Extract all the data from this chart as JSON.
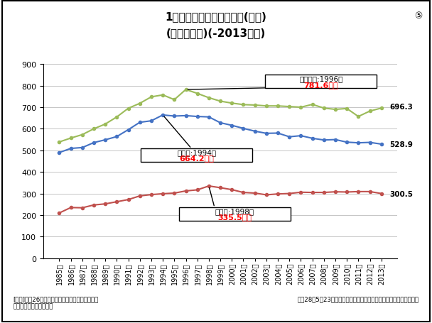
{
  "title_line1": "1世帯あたり平均所得金額(万円)",
  "title_line2": "(世帯構造別)(-2013年分)",
  "circle_num": "⑤",
  "years": [
    "1985年",
    "1986年",
    "1987年",
    "1988年",
    "1989年",
    "1990年",
    "1991年",
    "1992年",
    "1993年",
    "1994年",
    "1995年",
    "1996年",
    "1997年",
    "1998年",
    "1999年",
    "2000年",
    "2001年",
    "2002年",
    "2003年",
    "2004年",
    "2005年",
    "2006年",
    "2007年",
    "2008年",
    "2009年",
    "2010年",
    "2011年",
    "2012年",
    "2013年"
  ],
  "all_household": [
    490,
    509,
    513,
    536,
    549,
    564,
    596,
    630,
    637,
    664,
    659,
    661,
    657,
    655,
    628,
    616,
    602,
    589,
    579,
    580,
    563,
    568,
    556,
    548,
    550,
    538,
    535,
    537,
    529
  ],
  "elderly": [
    210,
    235,
    234,
    247,
    252,
    262,
    272,
    289,
    295,
    299,
    302,
    312,
    317,
    335,
    327,
    318,
    305,
    302,
    294,
    298,
    300,
    306,
    305,
    305,
    308,
    307,
    309,
    309,
    300
  ],
  "with_children": [
    539,
    557,
    573,
    600,
    622,
    655,
    695,
    718,
    748,
    757,
    735,
    782,
    764,
    744,
    728,
    719,
    712,
    710,
    706,
    706,
    703,
    700,
    713,
    696,
    690,
    694,
    657,
    682,
    696
  ],
  "all_household_color": "#4472C4",
  "elderly_color": "#C0504D",
  "with_children_color": "#9BBB59",
  "ylim": [
    0,
    900
  ],
  "yticks": [
    0,
    100,
    200,
    300,
    400,
    500,
    600,
    700,
    800,
    900
  ],
  "child_peak_idx": 11,
  "child_peak_val": 782,
  "all_peak_idx": 9,
  "all_peak_val": 664,
  "eld_peak_idx": 13,
  "eld_peak_val": 335,
  "annotation_child_title": "児童あり:1996年",
  "annotation_child_value": "781.6万円",
  "annotation_all_title": "全世帯:1994年",
  "annotation_all_value": "664.2万円",
  "annotation_elderly_title": "高齢者:1998年",
  "annotation_elderly_value": "335.5万円",
  "end_label_all": "528.9",
  "end_label_elderly": "300.5",
  "end_label_child": "696.3",
  "legend_all": "全世帯",
  "legend_elderly": "高齢者",
  "legend_child": "児童あり",
  "source_text": "[出典]平成26年　国民生活基礎調査の概況を基に\n　　足立信也事務所作成",
  "date_text": "平成28年5月23日　参議院決算委員会　民進党・新緑風会　足立信也",
  "annotation_red_color": "#FF0000",
  "title_fontsize": 11,
  "axis_fontsize": 7
}
